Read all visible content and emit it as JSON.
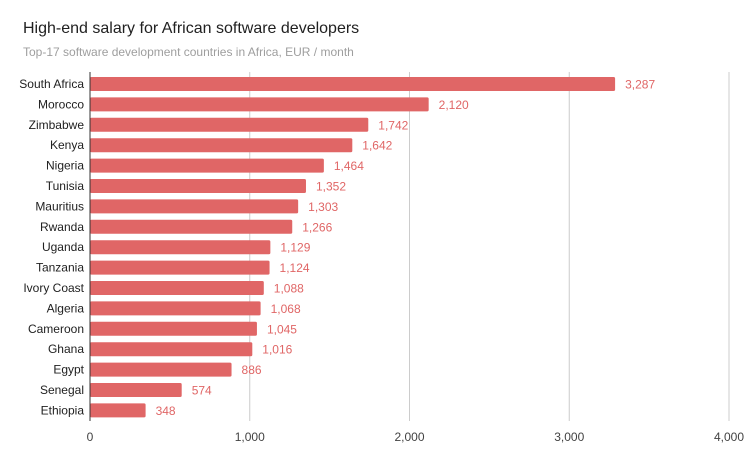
{
  "chart_data": {
    "type": "bar",
    "orientation": "horizontal",
    "title": "High-end salary for African software developers",
    "subtitle": "Top-17 software development countries in Africa, EUR / month",
    "categories": [
      "South Africa",
      "Morocco",
      "Zimbabwe",
      "Kenya",
      "Nigeria",
      "Tunisia",
      "Mauritius",
      "Rwanda",
      "Uganda",
      "Tanzania",
      "Ivory Coast",
      "Algeria",
      "Cameroon",
      "Ghana",
      "Egypt",
      "Senegal",
      "Ethiopia"
    ],
    "values": [
      3287,
      2120,
      1742,
      1642,
      1464,
      1352,
      1303,
      1266,
      1129,
      1124,
      1088,
      1068,
      1045,
      1016,
      886,
      574,
      348
    ],
    "value_labels": [
      "3,287",
      "2,120",
      "1,742",
      "1,642",
      "1,464",
      "1,352",
      "1,303",
      "1,266",
      "1,129",
      "1,124",
      "1,088",
      "1,068",
      "1,045",
      "1,016",
      "886",
      "574",
      "348"
    ],
    "x_ticks": [
      0,
      1000,
      2000,
      3000,
      4000
    ],
    "x_tick_labels": [
      "0",
      "1,000",
      "2,000",
      "3,000",
      "4,000"
    ],
    "xlim": [
      0,
      4000
    ],
    "xlabel": "",
    "ylabel": "",
    "grid": true,
    "legend": "none",
    "bar_color": "#e06666",
    "label_color": "#e06666",
    "grid_color": "#cccccc",
    "axis_color": "#333333"
  }
}
